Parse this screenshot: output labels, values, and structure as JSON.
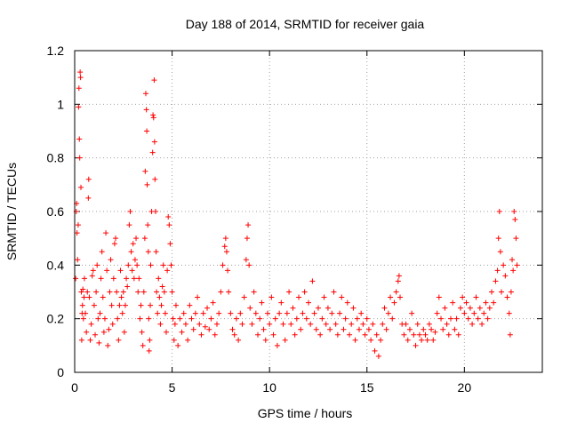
{
  "chart_data": {
    "type": "scatter",
    "title": "Day 188 of 2014, SRMTID for receiver gaia",
    "xlabel": "GPS time / hours",
    "ylabel": "SRMTID / TECUs",
    "xlim": [
      0,
      24
    ],
    "ylim": [
      0,
      1.2
    ],
    "grid": true,
    "marker": "+",
    "marker_color": "#ff0000",
    "xticks": [
      0,
      5,
      10,
      15,
      20
    ],
    "xtick_labels": [
      "0",
      "5",
      "10",
      "15",
      "20"
    ],
    "yticks": [
      0,
      0.2,
      0.4,
      0.6,
      0.8,
      1.0,
      1.2
    ],
    "ytick_labels": [
      "0",
      "0.2",
      "0.4",
      "0.6",
      "0.8",
      "1",
      "1.2"
    ],
    "series": [
      {
        "name": "SRMTID",
        "points": [
          [
            0.05,
            0.35
          ],
          [
            0.08,
            0.6
          ],
          [
            0.1,
            0.63
          ],
          [
            0.12,
            0.52
          ],
          [
            0.15,
            0.42
          ],
          [
            0.18,
            0.55
          ],
          [
            0.2,
            0.99
          ],
          [
            0.22,
            1.06
          ],
          [
            0.24,
            0.87
          ],
          [
            0.26,
            0.8
          ],
          [
            0.28,
            1.12
          ],
          [
            0.3,
            1.1
          ],
          [
            0.32,
            0.69
          ],
          [
            0.34,
            0.3
          ],
          [
            0.36,
            0.12
          ],
          [
            0.38,
            0.22
          ],
          [
            0.4,
            0.25
          ],
          [
            0.42,
            0.31
          ],
          [
            0.45,
            0.2
          ],
          [
            0.48,
            0.28
          ],
          [
            0.5,
            0.35
          ],
          [
            0.55,
            0.22
          ],
          [
            0.6,
            0.15
          ],
          [
            0.65,
            0.3
          ],
          [
            0.7,
            0.65
          ],
          [
            0.72,
            0.72
          ],
          [
            0.75,
            0.28
          ],
          [
            0.8,
            0.12
          ],
          [
            0.85,
            0.18
          ],
          [
            0.9,
            0.36
          ],
          [
            0.95,
            0.38
          ],
          [
            1.0,
            0.25
          ],
          [
            1.05,
            0.14
          ],
          [
            1.1,
            0.3
          ],
          [
            1.15,
            0.4
          ],
          [
            1.2,
            0.2
          ],
          [
            1.25,
            0.11
          ],
          [
            1.3,
            0.22
          ],
          [
            1.35,
            0.35
          ],
          [
            1.4,
            0.45
          ],
          [
            1.45,
            0.28
          ],
          [
            1.5,
            0.15
          ],
          [
            1.55,
            0.2
          ],
          [
            1.6,
            0.52
          ],
          [
            1.65,
            0.38
          ],
          [
            1.7,
            0.1
          ],
          [
            1.75,
            0.16
          ],
          [
            1.8,
            0.3
          ],
          [
            1.85,
            0.42
          ],
          [
            1.9,
            0.25
          ],
          [
            1.95,
            0.18
          ],
          [
            2.0,
            0.35
          ],
          [
            2.05,
            0.48
          ],
          [
            2.1,
            0.5
          ],
          [
            2.15,
            0.3
          ],
          [
            2.2,
            0.2
          ],
          [
            2.25,
            0.12
          ],
          [
            2.3,
            0.25
          ],
          [
            2.35,
            0.38
          ],
          [
            2.4,
            0.28
          ],
          [
            2.45,
            0.22
          ],
          [
            2.5,
            0.3
          ],
          [
            2.55,
            0.15
          ],
          [
            2.6,
            0.25
          ],
          [
            2.65,
            0.35
          ],
          [
            2.7,
            0.32
          ],
          [
            2.75,
            0.4
          ],
          [
            2.8,
            0.55
          ],
          [
            2.85,
            0.6
          ],
          [
            2.9,
            0.45
          ],
          [
            2.95,
            0.38
          ],
          [
            3.0,
            0.48
          ],
          [
            3.05,
            0.35
          ],
          [
            3.1,
            0.42
          ],
          [
            3.15,
            0.5
          ],
          [
            3.2,
            0.4
          ],
          [
            3.25,
            0.3
          ],
          [
            3.3,
            0.35
          ],
          [
            3.35,
            0.2
          ],
          [
            3.4,
            0.25
          ],
          [
            3.45,
            0.15
          ],
          [
            3.5,
            0.1
          ],
          [
            3.55,
            0.3
          ],
          [
            3.6,
            0.5
          ],
          [
            3.62,
            0.75
          ],
          [
            3.65,
            1.04
          ],
          [
            3.68,
            0.98
          ],
          [
            3.7,
            0.9
          ],
          [
            3.72,
            0.7
          ],
          [
            3.75,
            0.55
          ],
          [
            3.78,
            0.45
          ],
          [
            3.8,
            0.2
          ],
          [
            3.82,
            0.08
          ],
          [
            3.85,
            0.12
          ],
          [
            3.88,
            0.25
          ],
          [
            3.9,
            0.4
          ],
          [
            3.95,
            0.6
          ],
          [
            4.0,
            0.82
          ],
          [
            4.02,
            0.96
          ],
          [
            4.05,
            0.95
          ],
          [
            4.08,
            1.09
          ],
          [
            4.1,
            0.86
          ],
          [
            4.12,
            0.72
          ],
          [
            4.15,
            0.6
          ],
          [
            4.18,
            0.45
          ],
          [
            4.2,
            0.3
          ],
          [
            4.25,
            0.22
          ],
          [
            4.3,
            0.35
          ],
          [
            4.35,
            0.28
          ],
          [
            4.4,
            0.18
          ],
          [
            4.45,
            0.25
          ],
          [
            4.5,
            0.32
          ],
          [
            4.55,
            0.4
          ],
          [
            4.6,
            0.3
          ],
          [
            4.65,
            0.22
          ],
          [
            4.7,
            0.15
          ],
          [
            4.75,
            0.38
          ],
          [
            4.8,
            0.58
          ],
          [
            4.85,
            0.55
          ],
          [
            4.9,
            0.48
          ],
          [
            4.95,
            0.4
          ],
          [
            5.0,
            0.3
          ],
          [
            5.05,
            0.2
          ],
          [
            5.1,
            0.12
          ],
          [
            5.15,
            0.18
          ],
          [
            5.2,
            0.25
          ],
          [
            5.3,
            0.1
          ],
          [
            5.4,
            0.2
          ],
          [
            5.5,
            0.15
          ],
          [
            5.6,
            0.22
          ],
          [
            5.7,
            0.18
          ],
          [
            5.8,
            0.12
          ],
          [
            5.9,
            0.25
          ],
          [
            6.0,
            0.2
          ],
          [
            6.1,
            0.16
          ],
          [
            6.2,
            0.22
          ],
          [
            6.3,
            0.28
          ],
          [
            6.4,
            0.18
          ],
          [
            6.5,
            0.14
          ],
          [
            6.6,
            0.22
          ],
          [
            6.7,
            0.17
          ],
          [
            6.8,
            0.24
          ],
          [
            6.9,
            0.16
          ],
          [
            7.0,
            0.2
          ],
          [
            7.1,
            0.26
          ],
          [
            7.2,
            0.14
          ],
          [
            7.3,
            0.18
          ],
          [
            7.4,
            0.22
          ],
          [
            7.5,
            0.3
          ],
          [
            7.6,
            0.4
          ],
          [
            7.7,
            0.47
          ],
          [
            7.75,
            0.5
          ],
          [
            7.8,
            0.45
          ],
          [
            7.85,
            0.38
          ],
          [
            7.9,
            0.3
          ],
          [
            8.0,
            0.22
          ],
          [
            8.1,
            0.16
          ],
          [
            8.2,
            0.14
          ],
          [
            8.3,
            0.2
          ],
          [
            8.4,
            0.12
          ],
          [
            8.5,
            0.22
          ],
          [
            8.6,
            0.18
          ],
          [
            8.7,
            0.28
          ],
          [
            8.8,
            0.42
          ],
          [
            8.85,
            0.5
          ],
          [
            8.9,
            0.55
          ],
          [
            8.95,
            0.4
          ],
          [
            9.0,
            0.24
          ],
          [
            9.1,
            0.18
          ],
          [
            9.2,
            0.3
          ],
          [
            9.3,
            0.22
          ],
          [
            9.4,
            0.14
          ],
          [
            9.5,
            0.2
          ],
          [
            9.6,
            0.26
          ],
          [
            9.7,
            0.16
          ],
          [
            9.8,
            0.12
          ],
          [
            9.9,
            0.22
          ],
          [
            10.0,
            0.18
          ],
          [
            10.1,
            0.28
          ],
          [
            10.2,
            0.14
          ],
          [
            10.3,
            0.2
          ],
          [
            10.4,
            0.1
          ],
          [
            10.5,
            0.22
          ],
          [
            10.6,
            0.26
          ],
          [
            10.7,
            0.18
          ],
          [
            10.8,
            0.12
          ],
          [
            10.9,
            0.22
          ],
          [
            11.0,
            0.3
          ],
          [
            11.1,
            0.18
          ],
          [
            11.2,
            0.24
          ],
          [
            11.3,
            0.14
          ],
          [
            11.4,
            0.2
          ],
          [
            11.5,
            0.28
          ],
          [
            11.6,
            0.16
          ],
          [
            11.7,
            0.22
          ],
          [
            11.8,
            0.3
          ],
          [
            11.9,
            0.2
          ],
          [
            12.0,
            0.26
          ],
          [
            12.1,
            0.18
          ],
          [
            12.2,
            0.34
          ],
          [
            12.3,
            0.22
          ],
          [
            12.4,
            0.16
          ],
          [
            12.5,
            0.24
          ],
          [
            12.6,
            0.14
          ],
          [
            12.7,
            0.2
          ],
          [
            12.8,
            0.28
          ],
          [
            12.9,
            0.18
          ],
          [
            13.0,
            0.24
          ],
          [
            13.1,
            0.16
          ],
          [
            13.2,
            0.22
          ],
          [
            13.3,
            0.3
          ],
          [
            13.4,
            0.18
          ],
          [
            13.5,
            0.14
          ],
          [
            13.6,
            0.22
          ],
          [
            13.7,
            0.28
          ],
          [
            13.8,
            0.16
          ],
          [
            13.9,
            0.2
          ],
          [
            14.0,
            0.26
          ],
          [
            14.1,
            0.14
          ],
          [
            14.2,
            0.18
          ],
          [
            14.3,
            0.24
          ],
          [
            14.4,
            0.12
          ],
          [
            14.5,
            0.2
          ],
          [
            14.6,
            0.16
          ],
          [
            14.7,
            0.22
          ],
          [
            14.8,
            0.18
          ],
          [
            14.9,
            0.14
          ],
          [
            15.0,
            0.2
          ],
          [
            15.1,
            0.16
          ],
          [
            15.2,
            0.12
          ],
          [
            15.3,
            0.18
          ],
          [
            15.4,
            0.08
          ],
          [
            15.5,
            0.14
          ],
          [
            15.6,
            0.06
          ],
          [
            15.7,
            0.12
          ],
          [
            15.8,
            0.18
          ],
          [
            15.9,
            0.24
          ],
          [
            16.0,
            0.16
          ],
          [
            16.1,
            0.22
          ],
          [
            16.2,
            0.28
          ],
          [
            16.3,
            0.2
          ],
          [
            16.4,
            0.26
          ],
          [
            16.5,
            0.3
          ],
          [
            16.6,
            0.34
          ],
          [
            16.65,
            0.36
          ],
          [
            16.7,
            0.28
          ],
          [
            16.8,
            0.18
          ],
          [
            16.9,
            0.14
          ],
          [
            17.0,
            0.18
          ],
          [
            17.1,
            0.12
          ],
          [
            17.2,
            0.16
          ],
          [
            17.3,
            0.22
          ],
          [
            17.4,
            0.14
          ],
          [
            17.5,
            0.1
          ],
          [
            17.6,
            0.18
          ],
          [
            17.7,
            0.14
          ],
          [
            17.8,
            0.12
          ],
          [
            17.9,
            0.16
          ],
          [
            18.0,
            0.14
          ],
          [
            18.1,
            0.12
          ],
          [
            18.2,
            0.18
          ],
          [
            18.3,
            0.16
          ],
          [
            18.4,
            0.12
          ],
          [
            18.5,
            0.15
          ],
          [
            18.6,
            0.22
          ],
          [
            18.7,
            0.28
          ],
          [
            18.8,
            0.2
          ],
          [
            18.9,
            0.16
          ],
          [
            19.0,
            0.24
          ],
          [
            19.1,
            0.18
          ],
          [
            19.2,
            0.14
          ],
          [
            19.3,
            0.2
          ],
          [
            19.4,
            0.26
          ],
          [
            19.5,
            0.16
          ],
          [
            19.6,
            0.2
          ],
          [
            19.7,
            0.14
          ],
          [
            19.8,
            0.24
          ],
          [
            19.9,
            0.28
          ],
          [
            20.0,
            0.22
          ],
          [
            20.1,
            0.26
          ],
          [
            20.2,
            0.2
          ],
          [
            20.3,
            0.24
          ],
          [
            20.4,
            0.18
          ],
          [
            20.5,
            0.22
          ],
          [
            20.6,
            0.28
          ],
          [
            20.7,
            0.2
          ],
          [
            20.8,
            0.24
          ],
          [
            20.9,
            0.18
          ],
          [
            21.0,
            0.22
          ],
          [
            21.1,
            0.26
          ],
          [
            21.2,
            0.2
          ],
          [
            21.3,
            0.24
          ],
          [
            21.4,
            0.3
          ],
          [
            21.5,
            0.26
          ],
          [
            21.6,
            0.34
          ],
          [
            21.7,
            0.38
          ],
          [
            21.75,
            0.5
          ],
          [
            21.8,
            0.6
          ],
          [
            21.85,
            0.45
          ],
          [
            21.9,
            0.3
          ],
          [
            22.0,
            0.4
          ],
          [
            22.1,
            0.36
          ],
          [
            22.2,
            0.28
          ],
          [
            22.3,
            0.22
          ],
          [
            22.35,
            0.14
          ],
          [
            22.4,
            0.3
          ],
          [
            22.45,
            0.42
          ],
          [
            22.5,
            0.38
          ],
          [
            22.55,
            0.6
          ],
          [
            22.6,
            0.57
          ],
          [
            22.65,
            0.5
          ],
          [
            22.7,
            0.4
          ]
        ]
      }
    ]
  }
}
